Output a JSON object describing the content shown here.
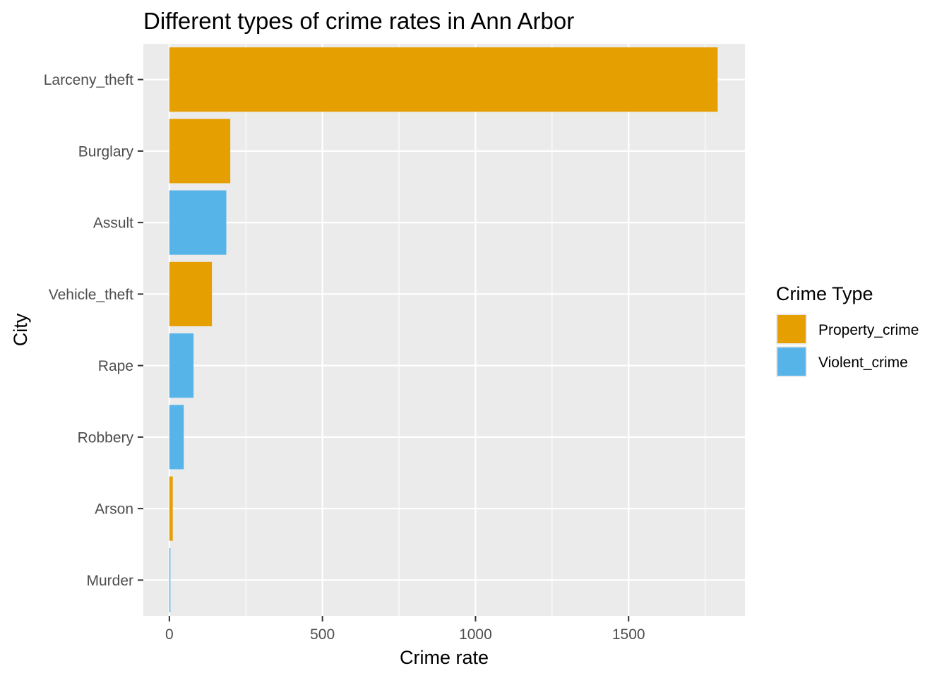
{
  "chart_data": {
    "type": "bar",
    "orientation": "horizontal",
    "title": "Different types of crime rates in Ann Arbor",
    "xlabel": "Crime rate",
    "ylabel": "City",
    "categories": [
      "Murder",
      "Arson",
      "Robbery",
      "Rape",
      "Vehicle_theft",
      "Assult",
      "Burglary",
      "Larceny_theft"
    ],
    "values": [
      1,
      11,
      47,
      79,
      139,
      186,
      199,
      1791
    ],
    "groups": [
      "Violent_crime",
      "Property_crime",
      "Violent_crime",
      "Violent_crime",
      "Property_crime",
      "Violent_crime",
      "Property_crime",
      "Property_crime"
    ],
    "xlim": [
      -85,
      1880
    ],
    "xticks": [
      0,
      500,
      1000,
      1500
    ],
    "grid": true,
    "legend": {
      "title": "Crime Type",
      "position": "right",
      "entries": [
        {
          "name": "Property_crime",
          "color": "#E69F00"
        },
        {
          "name": "Violent_crime",
          "color": "#56B4E9"
        }
      ]
    },
    "colors": {
      "panel_background": "#EBEBEB",
      "grid": "#FFFFFF",
      "tick": "#333333"
    }
  }
}
